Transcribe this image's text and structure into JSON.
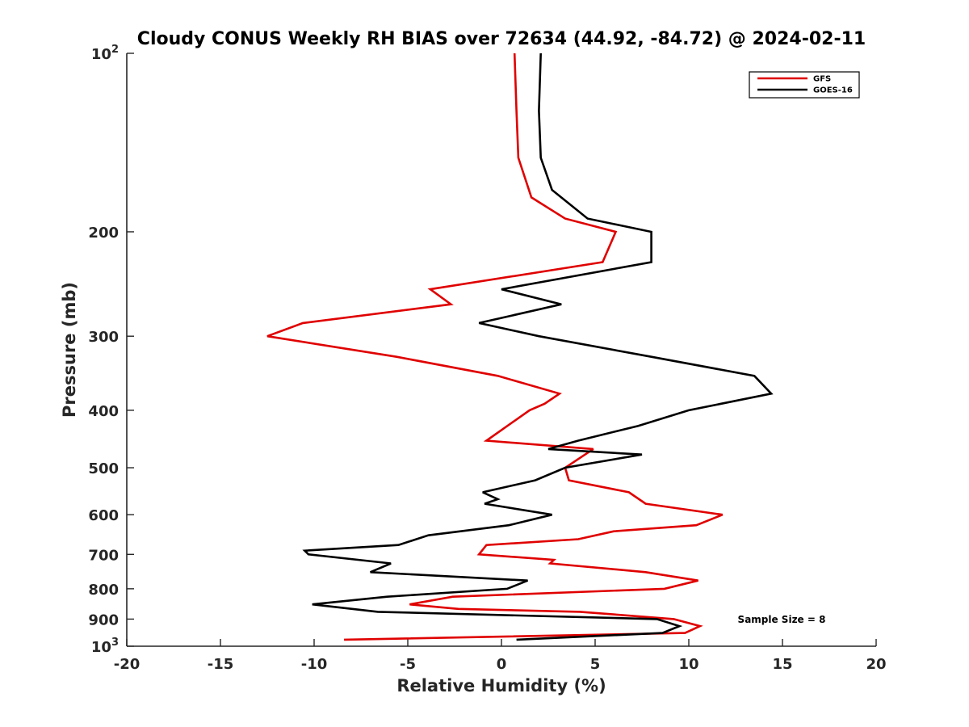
{
  "chart_data": {
    "type": "line",
    "title": "Cloudy CONUS Weekly RH BIAS over 72634 (44.92, -84.72) @ 2024-02-11",
    "xlabel": "Relative Humidity (%)",
    "ylabel": "Pressure (mb)",
    "xlim": [
      -20,
      20
    ],
    "ylim": [
      1000,
      100
    ],
    "yscale": "log",
    "grid": false,
    "legend_position": "top-right",
    "x_ticks": [
      -20,
      -15,
      -10,
      -5,
      0,
      5,
      10,
      15,
      20
    ],
    "x_tick_labels": [
      "-20",
      "-15",
      "-10",
      "-5",
      "0",
      "5",
      "10",
      "15",
      "20"
    ],
    "y_ticks": [
      {
        "value": 100,
        "base": "10",
        "exp": "2"
      },
      {
        "value": 200,
        "label": "200"
      },
      {
        "value": 300,
        "label": "300"
      },
      {
        "value": 400,
        "label": "400"
      },
      {
        "value": 500,
        "label": "500"
      },
      {
        "value": 600,
        "label": "600"
      },
      {
        "value": 700,
        "label": "700"
      },
      {
        "value": 800,
        "label": "800"
      },
      {
        "value": 900,
        "label": "900"
      },
      {
        "value": 1000,
        "base": "10",
        "exp": "3"
      }
    ],
    "annotation": "Sample Size = 8",
    "series": [
      {
        "name": "GFS",
        "color": "#e00000",
        "points": [
          {
            "x": 0.7,
            "y": 100
          },
          {
            "x": 0.8,
            "y": 125
          },
          {
            "x": 0.9,
            "y": 150
          },
          {
            "x": 1.6,
            "y": 175
          },
          {
            "x": 3.4,
            "y": 190
          },
          {
            "x": 6.1,
            "y": 200
          },
          {
            "x": 5.4,
            "y": 225
          },
          {
            "x": -3.8,
            "y": 250
          },
          {
            "x": -2.7,
            "y": 265
          },
          {
            "x": -10.6,
            "y": 285
          },
          {
            "x": -12.5,
            "y": 300
          },
          {
            "x": -5.6,
            "y": 325
          },
          {
            "x": -0.2,
            "y": 350
          },
          {
            "x": 3.1,
            "y": 375
          },
          {
            "x": 2.3,
            "y": 390
          },
          {
            "x": 1.5,
            "y": 400
          },
          {
            "x": -0.8,
            "y": 450
          },
          {
            "x": 4.9,
            "y": 465
          },
          {
            "x": 3.4,
            "y": 500
          },
          {
            "x": 3.6,
            "y": 525
          },
          {
            "x": 6.8,
            "y": 550
          },
          {
            "x": 7.7,
            "y": 575
          },
          {
            "x": 11.8,
            "y": 600
          },
          {
            "x": 10.4,
            "y": 625
          },
          {
            "x": 6.0,
            "y": 640
          },
          {
            "x": 4.1,
            "y": 660
          },
          {
            "x": -0.8,
            "y": 675
          },
          {
            "x": -1.2,
            "y": 700
          },
          {
            "x": 2.8,
            "y": 715
          },
          {
            "x": 2.6,
            "y": 725
          },
          {
            "x": 7.7,
            "y": 750
          },
          {
            "x": 10.5,
            "y": 775
          },
          {
            "x": 8.7,
            "y": 800
          },
          {
            "x": -2.6,
            "y": 825
          },
          {
            "x": -4.9,
            "y": 850
          },
          {
            "x": -2.3,
            "y": 865
          },
          {
            "x": 4.2,
            "y": 875
          },
          {
            "x": 9.2,
            "y": 900
          },
          {
            "x": 10.6,
            "y": 925
          },
          {
            "x": 9.8,
            "y": 950
          },
          {
            "x": -8.4,
            "y": 975
          }
        ]
      },
      {
        "name": "GOES-16",
        "color": "#000000",
        "points": [
          {
            "x": 2.1,
            "y": 100
          },
          {
            "x": 2.0,
            "y": 125
          },
          {
            "x": 2.1,
            "y": 150
          },
          {
            "x": 2.7,
            "y": 170
          },
          {
            "x": 4.6,
            "y": 190
          },
          {
            "x": 8.0,
            "y": 200
          },
          {
            "x": 8.0,
            "y": 225
          },
          {
            "x": 0.0,
            "y": 250
          },
          {
            "x": 3.2,
            "y": 265
          },
          {
            "x": -1.2,
            "y": 285
          },
          {
            "x": 2.0,
            "y": 300
          },
          {
            "x": 8.0,
            "y": 325
          },
          {
            "x": 13.5,
            "y": 350
          },
          {
            "x": 14.4,
            "y": 375
          },
          {
            "x": 10.0,
            "y": 400
          },
          {
            "x": 7.3,
            "y": 425
          },
          {
            "x": 4.1,
            "y": 450
          },
          {
            "x": 2.5,
            "y": 465
          },
          {
            "x": 7.5,
            "y": 475
          },
          {
            "x": 3.4,
            "y": 500
          },
          {
            "x": 1.8,
            "y": 525
          },
          {
            "x": -1.0,
            "y": 550
          },
          {
            "x": -0.2,
            "y": 565
          },
          {
            "x": -0.9,
            "y": 575
          },
          {
            "x": 2.7,
            "y": 600
          },
          {
            "x": 0.4,
            "y": 625
          },
          {
            "x": -3.9,
            "y": 650
          },
          {
            "x": -5.5,
            "y": 675
          },
          {
            "x": -10.5,
            "y": 690
          },
          {
            "x": -10.3,
            "y": 700
          },
          {
            "x": -5.9,
            "y": 725
          },
          {
            "x": -7.0,
            "y": 750
          },
          {
            "x": 1.4,
            "y": 775
          },
          {
            "x": 0.3,
            "y": 800
          },
          {
            "x": -6.1,
            "y": 825
          },
          {
            "x": -10.1,
            "y": 850
          },
          {
            "x": -6.6,
            "y": 875
          },
          {
            "x": 8.3,
            "y": 900
          },
          {
            "x": 9.5,
            "y": 925
          },
          {
            "x": 8.6,
            "y": 950
          },
          {
            "x": 0.8,
            "y": 975
          }
        ]
      }
    ]
  }
}
